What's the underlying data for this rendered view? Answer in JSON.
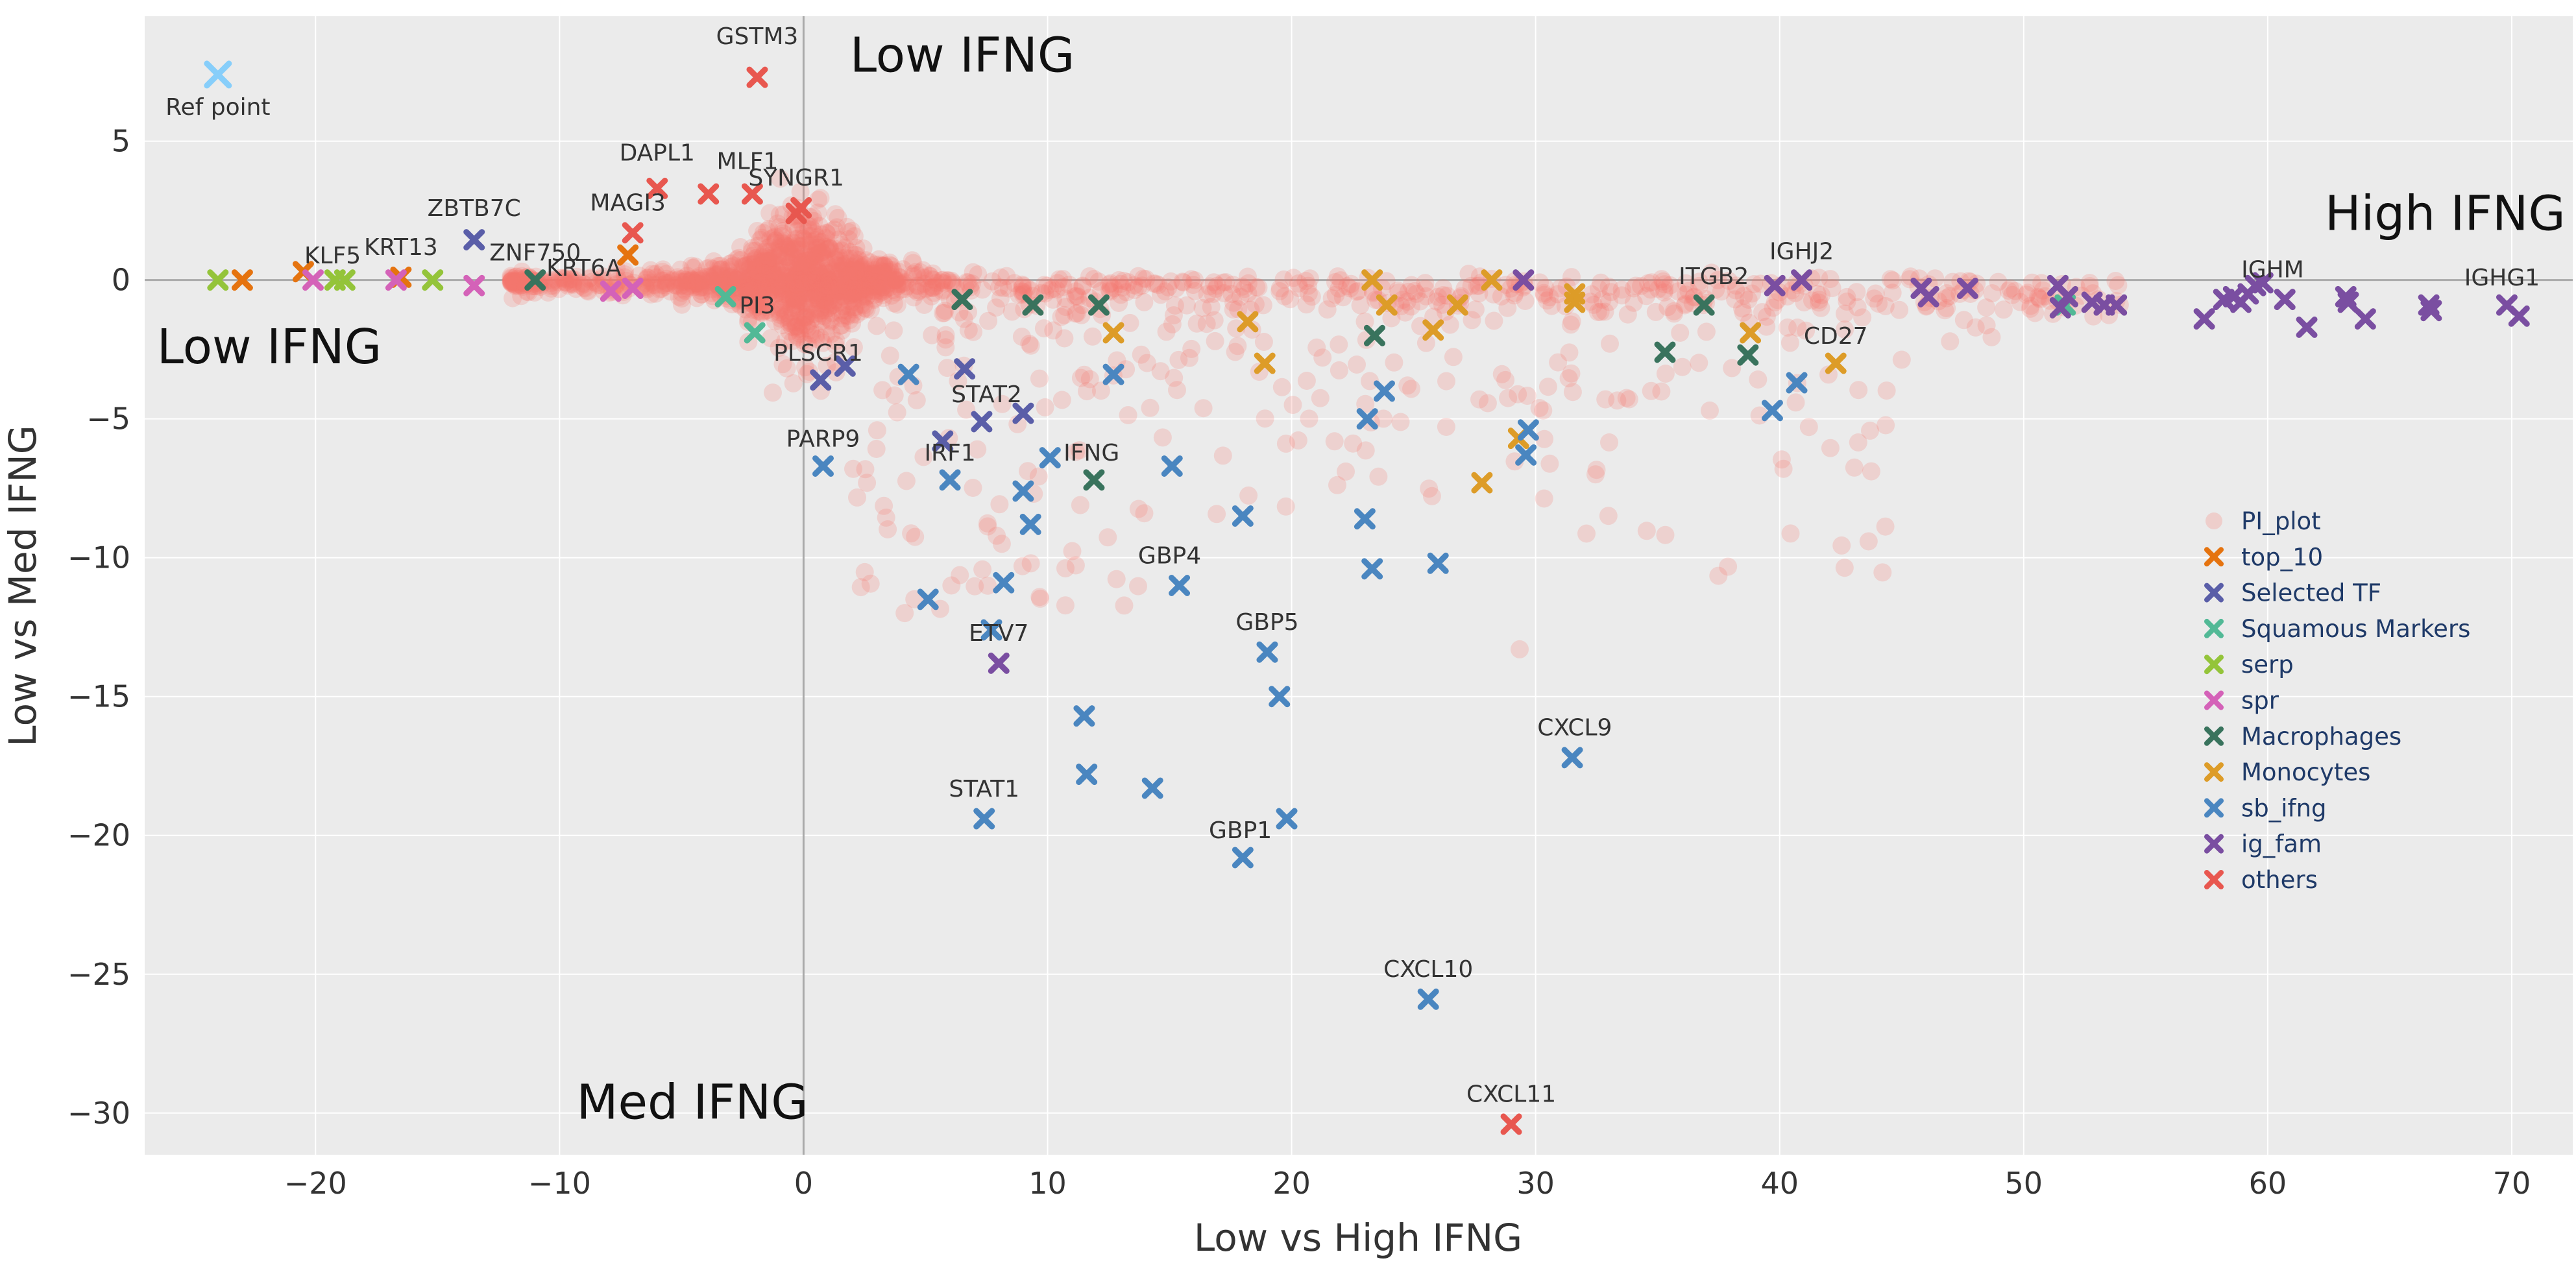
{
  "chart_data": {
    "type": "scatter",
    "title": "",
    "xlabel": "Low vs High IFNG",
    "ylabel": "Low vs Med IFNG",
    "xlim": [
      -27,
      72.5
    ],
    "ylim": [
      -31.5,
      9.5
    ],
    "x_ticks": [
      -20,
      -10,
      0,
      10,
      20,
      30,
      40,
      50,
      60,
      70
    ],
    "y_ticks": [
      5,
      0,
      -5,
      -10,
      -15,
      -20,
      -25,
      -30
    ],
    "x_tick_labels": [
      "−20",
      "−10",
      "0",
      "10",
      "20",
      "30",
      "40",
      "50",
      "60",
      "70"
    ],
    "y_tick_labels": [
      "5",
      "0",
      "−5",
      "−10",
      "−15",
      "−20",
      "−25",
      "−30"
    ],
    "grid": true,
    "legend_position": "right",
    "reference_point": {
      "x": -24,
      "y": 7.4,
      "label": "Ref point",
      "color": "#87cefa"
    },
    "quadrant_labels": [
      {
        "text": "Low IFNG",
        "x": 1.9,
        "y": 7.5,
        "anchor": "start"
      },
      {
        "text": "High IFNG",
        "x": 72.2,
        "y": 1.8,
        "anchor": "end"
      },
      {
        "text": "Low IFNG",
        "x": -26.5,
        "y": -3.0,
        "anchor": "start"
      },
      {
        "text": "Med IFNG",
        "x": -9.3,
        "y": -30.2,
        "anchor": "start"
      }
    ],
    "series": [
      {
        "name": "PI_plot",
        "color": "#f8766d",
        "marker": "circle",
        "points": []
      },
      {
        "name": "top_10",
        "color": "#e5730f",
        "marker": "x",
        "points": [
          {
            "x": -23,
            "y": 0
          },
          {
            "x": -20.5,
            "y": 0.3
          },
          {
            "x": -16.5,
            "y": 0.1
          },
          {
            "x": -7.2,
            "y": 0.9
          }
        ]
      },
      {
        "name": "Selected TF",
        "color": "#5a5ea8",
        "marker": "x",
        "points": [
          {
            "x": -13.5,
            "y": 1.45,
            "label": "ZBTB7C"
          },
          {
            "x": 0.7,
            "y": -3.6
          },
          {
            "x": 1.7,
            "y": -3.1
          },
          {
            "x": 6.6,
            "y": -3.2
          },
          {
            "x": 7.3,
            "y": -5.1
          },
          {
            "x": 5.7,
            "y": -5.8
          },
          {
            "x": 9.0,
            "y": -4.8
          }
        ]
      },
      {
        "name": "Squamous Markers",
        "color": "#52b996",
        "marker": "x",
        "points": [
          {
            "x": -2.0,
            "y": -1.9
          },
          {
            "x": -3.2,
            "y": -0.6
          },
          {
            "x": 51.7,
            "y": -0.9
          }
        ]
      },
      {
        "name": "serp",
        "color": "#94c43a",
        "marker": "x",
        "points": [
          {
            "x": -24,
            "y": 0
          },
          {
            "x": -19.2,
            "y": 0
          },
          {
            "x": -18.8,
            "y": 0
          },
          {
            "x": -15.2,
            "y": 0
          }
        ]
      },
      {
        "name": "spr",
        "color": "#d462b8",
        "marker": "x",
        "points": [
          {
            "x": -20.1,
            "y": 0
          },
          {
            "x": -16.7,
            "y": 0
          },
          {
            "x": -13.5,
            "y": -0.2
          },
          {
            "x": -7.9,
            "y": -0.4
          },
          {
            "x": -7.0,
            "y": -0.3
          }
        ]
      },
      {
        "name": "Macrophages",
        "color": "#39735d",
        "marker": "x",
        "points": [
          {
            "x": 11.9,
            "y": -7.2
          },
          {
            "x": 9.4,
            "y": -0.9
          },
          {
            "x": 12.1,
            "y": -0.9
          },
          {
            "x": 6.5,
            "y": -0.7
          },
          {
            "x": 23.4,
            "y": -2.0
          },
          {
            "x": 35.3,
            "y": -2.6
          },
          {
            "x": 36.9,
            "y": -0.9
          },
          {
            "x": 38.7,
            "y": -2.7
          },
          {
            "x": -11.0,
            "y": 0
          }
        ]
      },
      {
        "name": "Monocytes",
        "color": "#dd9c28",
        "marker": "x",
        "points": [
          {
            "x": 12.7,
            "y": -1.9
          },
          {
            "x": 18.2,
            "y": -1.5
          },
          {
            "x": 18.9,
            "y": -3.0
          },
          {
            "x": 23.3,
            "y": 0
          },
          {
            "x": 23.9,
            "y": -0.9
          },
          {
            "x": 25.8,
            "y": -1.8
          },
          {
            "x": 26.8,
            "y": -0.9
          },
          {
            "x": 27.8,
            "y": -7.3
          },
          {
            "x": 28.2,
            "y": 0
          },
          {
            "x": 29.3,
            "y": -5.7
          },
          {
            "x": 31.6,
            "y": -0.5
          },
          {
            "x": 31.6,
            "y": -0.8
          },
          {
            "x": 38.8,
            "y": -1.9
          },
          {
            "x": 42.3,
            "y": -3.0
          }
        ]
      },
      {
        "name": "sb_ifng",
        "color": "#4a86c0",
        "marker": "x",
        "points": [
          {
            "x": 0.8,
            "y": -6.7
          },
          {
            "x": 4.3,
            "y": -3.4
          },
          {
            "x": 6.0,
            "y": -7.2
          },
          {
            "x": 9.0,
            "y": -7.6
          },
          {
            "x": 9.3,
            "y": -8.8
          },
          {
            "x": 8.2,
            "y": -10.9
          },
          {
            "x": 5.1,
            "y": -11.5
          },
          {
            "x": 7.7,
            "y": -12.6
          },
          {
            "x": 10.1,
            "y": -6.4
          },
          {
            "x": 12.7,
            "y": -3.4
          },
          {
            "x": 15.1,
            "y": -6.7
          },
          {
            "x": 15.4,
            "y": -11.0
          },
          {
            "x": 11.5,
            "y": -15.7
          },
          {
            "x": 11.6,
            "y": -17.8
          },
          {
            "x": 14.3,
            "y": -18.3
          },
          {
            "x": 7.4,
            "y": -19.4,
            "label": "STAT1"
          },
          {
            "x": 18.0,
            "y": -8.5
          },
          {
            "x": 19.0,
            "y": -13.4
          },
          {
            "x": 19.5,
            "y": -15.0
          },
          {
            "x": 18.0,
            "y": -20.8,
            "label": "GBP1"
          },
          {
            "x": 19.8,
            "y": -19.4
          },
          {
            "x": 23.0,
            "y": -8.6
          },
          {
            "x": 23.1,
            "y": -5.0
          },
          {
            "x": 23.8,
            "y": -4.0
          },
          {
            "x": 23.3,
            "y": -10.4
          },
          {
            "x": 26.0,
            "y": -10.2
          },
          {
            "x": 29.7,
            "y": -5.4
          },
          {
            "x": 29.6,
            "y": -6.3
          },
          {
            "x": 31.5,
            "y": -17.2
          },
          {
            "x": 25.6,
            "y": -25.9
          },
          {
            "x": 39.7,
            "y": -4.7
          },
          {
            "x": 40.7,
            "y": -3.7
          }
        ]
      },
      {
        "name": "ig_fam",
        "color": "#7a4ea1",
        "marker": "x",
        "points": [
          {
            "x": 8.0,
            "y": -13.8
          },
          {
            "x": 29.5,
            "y": 0
          },
          {
            "x": 39.8,
            "y": -0.2
          },
          {
            "x": 40.9,
            "y": 0
          },
          {
            "x": 45.8,
            "y": -0.3
          },
          {
            "x": 46.1,
            "y": -0.6
          },
          {
            "x": 47.7,
            "y": -0.3
          },
          {
            "x": 51.4,
            "y": -0.2
          },
          {
            "x": 51.5,
            "y": -1.0
          },
          {
            "x": 51.8,
            "y": -0.6
          },
          {
            "x": 52.8,
            "y": -0.8
          },
          {
            "x": 53.3,
            "y": -0.9
          },
          {
            "x": 53.8,
            "y": -0.9
          },
          {
            "x": 57.4,
            "y": -1.4
          },
          {
            "x": 58.2,
            "y": -0.7
          },
          {
            "x": 58.6,
            "y": -0.6
          },
          {
            "x": 58.9,
            "y": -0.8
          },
          {
            "x": 59.2,
            "y": -0.5
          },
          {
            "x": 59.5,
            "y": -0.2
          },
          {
            "x": 59.8,
            "y": -0.1
          },
          {
            "x": 60.7,
            "y": -0.7
          },
          {
            "x": 61.6,
            "y": -1.7
          },
          {
            "x": 63.2,
            "y": -0.6
          },
          {
            "x": 63.3,
            "y": -0.8
          },
          {
            "x": 64.0,
            "y": -1.4
          },
          {
            "x": 66.6,
            "y": -0.9
          },
          {
            "x": 66.7,
            "y": -1.1
          },
          {
            "x": 69.8,
            "y": -0.9
          },
          {
            "x": 70.3,
            "y": -1.3
          }
        ]
      },
      {
        "name": "others",
        "color": "#e8574f",
        "marker": "x",
        "points": [
          {
            "x": -1.9,
            "y": 7.3,
            "label": "GSTM3"
          },
          {
            "x": -6.0,
            "y": 3.3
          },
          {
            "x": -3.9,
            "y": 3.1
          },
          {
            "x": -2.1,
            "y": 3.1
          },
          {
            "x": -0.1,
            "y": 2.6
          },
          {
            "x": -0.3,
            "y": 2.4
          },
          {
            "x": -7.0,
            "y": 1.7
          },
          {
            "x": 29.0,
            "y": -30.4,
            "label": "CXCL11"
          }
        ]
      }
    ],
    "gene_labels": [
      {
        "text": "GSTM3",
        "x": -1.9,
        "y": 8.5
      },
      {
        "text": "DAPL1",
        "x": -6.0,
        "y": 4.3
      },
      {
        "text": "MLF1",
        "x": -2.3,
        "y": 4.0
      },
      {
        "text": "SYNGR1",
        "x": -0.3,
        "y": 3.4
      },
      {
        "text": "MAGI3",
        "x": -7.2,
        "y": 2.5
      },
      {
        "text": "ZBTB7C",
        "x": -13.5,
        "y": 2.3
      },
      {
        "text": "ZNF750",
        "x": -11.0,
        "y": 0.7
      },
      {
        "text": "KRT13",
        "x": -16.5,
        "y": 0.9
      },
      {
        "text": "KLF5",
        "x": -19.3,
        "y": 0.6
      },
      {
        "text": "KRT6A",
        "x": -9.0,
        "y": 0.15
      },
      {
        "text": "PI3",
        "x": -1.9,
        "y": -1.2
      },
      {
        "text": "PLSCR1",
        "x": 0.6,
        "y": -2.9
      },
      {
        "text": "STAT2",
        "x": 7.5,
        "y": -4.4
      },
      {
        "text": "PARP9",
        "x": 0.8,
        "y": -6.0
      },
      {
        "text": "IRF1",
        "x": 6.0,
        "y": -6.5
      },
      {
        "text": "IFNG",
        "x": 11.8,
        "y": -6.5
      },
      {
        "text": "GBP4",
        "x": 15.0,
        "y": -10.2
      },
      {
        "text": "ETV7",
        "x": 8.0,
        "y": -13.0
      },
      {
        "text": "GBP5",
        "x": 19.0,
        "y": -12.6
      },
      {
        "text": "STAT1",
        "x": 7.4,
        "y": -18.6
      },
      {
        "text": "GBP1",
        "x": 17.9,
        "y": -20.1
      },
      {
        "text": "CXCL9",
        "x": 31.6,
        "y": -16.4
      },
      {
        "text": "CXCL10",
        "x": 25.6,
        "y": -25.1
      },
      {
        "text": "CXCL11",
        "x": 29.0,
        "y": -29.6
      },
      {
        "text": "ITGB2",
        "x": 37.3,
        "y": -0.15
      },
      {
        "text": "IGHJ2",
        "x": 40.9,
        "y": 0.75
      },
      {
        "text": "CD27",
        "x": 42.3,
        "y": -2.3
      },
      {
        "text": "IGHM",
        "x": 60.2,
        "y": 0.1
      },
      {
        "text": "IGHG1",
        "x": 69.6,
        "y": -0.2
      }
    ]
  }
}
